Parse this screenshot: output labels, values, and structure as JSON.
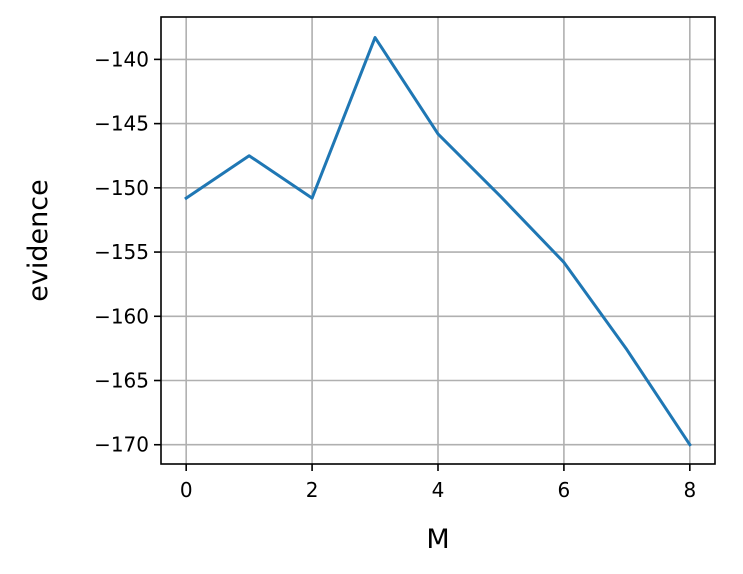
{
  "chart_data": {
    "type": "line",
    "title": "",
    "xlabel": "M",
    "ylabel": "evidence",
    "xlim": [
      -0.4,
      8.4
    ],
    "ylim": [
      -171.5,
      -136.7
    ],
    "xticks": [
      0,
      2,
      4,
      6,
      8
    ],
    "xtick_labels": [
      "0",
      "2",
      "4",
      "6",
      "8"
    ],
    "yticks": [
      -140,
      -145,
      -150,
      -155,
      -160,
      -165,
      -170
    ],
    "ytick_labels": [
      "−140",
      "−145",
      "−150",
      "−155",
      "−160",
      "−165",
      "−170"
    ],
    "grid": true,
    "legend": "none",
    "line_color": "#1f77b4",
    "grid_color": "#b0b0b0",
    "series": [
      {
        "x": [
          0,
          1,
          2,
          3,
          4,
          5,
          6,
          7,
          8
        ],
        "values": [
          -150.8,
          -147.5,
          -150.8,
          -138.3,
          -145.8,
          -150.7,
          -155.8,
          -162.6,
          -170.0
        ]
      }
    ]
  }
}
